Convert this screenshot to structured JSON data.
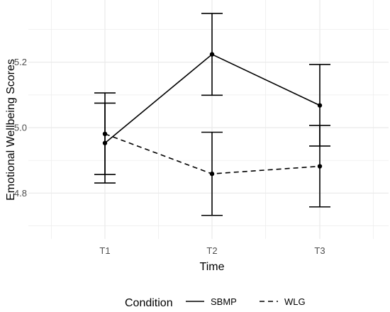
{
  "chart_data": {
    "type": "line",
    "title": "",
    "xlabel": "Time",
    "ylabel": "Emotional Wellbeing Scores",
    "categories": [
      "T1",
      "T2",
      "T3"
    ],
    "ylim": [
      4.66,
      5.39
    ],
    "yticks": [
      4.8,
      5.0,
      5.2
    ],
    "ytick_labels": [
      "4.8",
      "5.0",
      "5.2"
    ],
    "grid": true,
    "legend": {
      "title": "Condition",
      "placement": "bottom"
    },
    "series": [
      {
        "name": "SBMP",
        "line_style": "solid",
        "color": "#000000",
        "values": [
          4.953,
          5.224,
          5.068
        ],
        "error_low": [
          4.831,
          5.099,
          4.944
        ],
        "error_high": [
          5.075,
          5.349,
          5.193
        ]
      },
      {
        "name": "WLG",
        "line_style": "dashed",
        "color": "#000000",
        "values": [
          4.981,
          4.859,
          4.882
        ],
        "error_low": [
          4.857,
          4.732,
          4.758
        ],
        "error_high": [
          5.106,
          4.986,
          5.007
        ]
      }
    ],
    "colors": {
      "grid": "#ebebeb",
      "tick_text": "#4d4d4d"
    }
  }
}
